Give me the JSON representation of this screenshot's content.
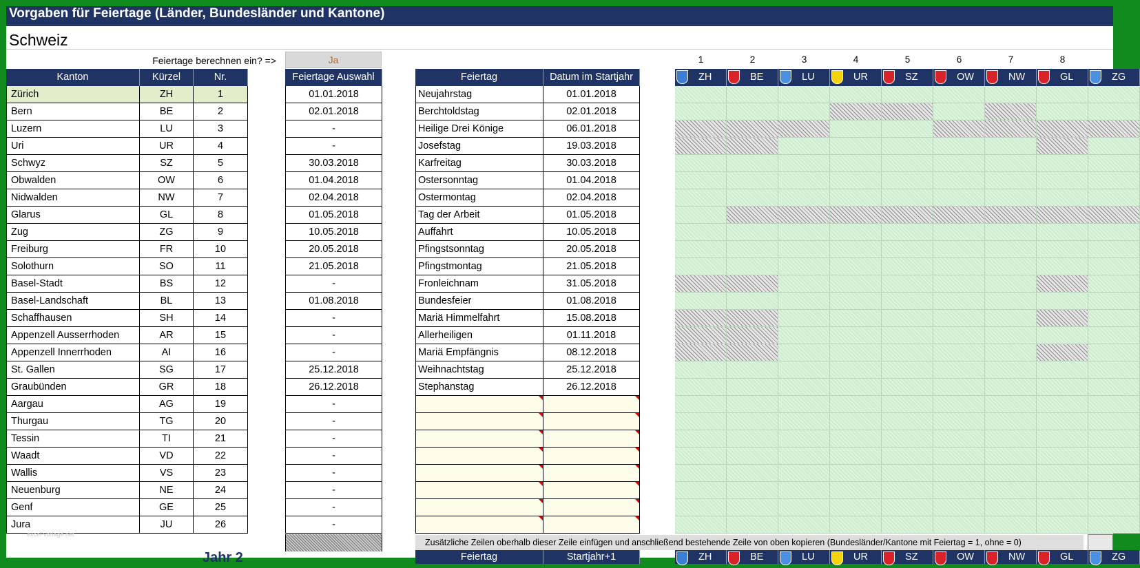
{
  "title": "Vorgaben für Feiertage  (Länder, Bundesländer und Kantone)",
  "country": "Schweiz",
  "calc_question": "Feiertage berechnen ein? =>",
  "calc_answer": "Ja",
  "kanton_table": {
    "headers": [
      "Kanton",
      "Kürzel",
      "Nr."
    ],
    "rows": [
      [
        "Zürich",
        "ZH",
        "1"
      ],
      [
        "Bern",
        "BE",
        "2"
      ],
      [
        "Luzern",
        "LU",
        "3"
      ],
      [
        "Uri",
        "UR",
        "4"
      ],
      [
        "Schwyz",
        "SZ",
        "5"
      ],
      [
        "Obwalden",
        "OW",
        "6"
      ],
      [
        "Nidwalden",
        "NW",
        "7"
      ],
      [
        "Glarus",
        "GL",
        "8"
      ],
      [
        "Zug",
        "ZG",
        "9"
      ],
      [
        "Freiburg",
        "FR",
        "10"
      ],
      [
        "Solothurn",
        "SO",
        "11"
      ],
      [
        "Basel-Stadt",
        "BS",
        "12"
      ],
      [
        "Basel-Landschaft",
        "BL",
        "13"
      ],
      [
        "Schaffhausen",
        "SH",
        "14"
      ],
      [
        "Appenzell Ausserrhoden",
        "AR",
        "15"
      ],
      [
        "Appenzell Innerrhoden",
        "AI",
        "16"
      ],
      [
        "St. Gallen",
        "SG",
        "17"
      ],
      [
        "Graubünden",
        "GR",
        "18"
      ],
      [
        "Aargau",
        "AG",
        "19"
      ],
      [
        "Thurgau",
        "TG",
        "20"
      ],
      [
        "Tessin",
        "TI",
        "21"
      ],
      [
        "Waadt",
        "VD",
        "22"
      ],
      [
        "Wallis",
        "VS",
        "23"
      ],
      [
        "Neuenburg",
        "NE",
        "24"
      ],
      [
        "Genf",
        "GE",
        "25"
      ],
      [
        "Jura",
        "JU",
        "26"
      ]
    ]
  },
  "auswahl": {
    "header": "Feiertage Auswahl",
    "values": [
      "01.01.2018",
      "02.01.2018",
      "-",
      "-",
      "30.03.2018",
      "01.04.2018",
      "02.04.2018",
      "01.05.2018",
      "10.05.2018",
      "20.05.2018",
      "21.05.2018",
      "-",
      "01.08.2018",
      "-",
      "-",
      "-",
      "25.12.2018",
      "26.12.2018",
      "-",
      "-",
      "-",
      "-",
      "-",
      "-",
      "-",
      "-"
    ]
  },
  "feiertage": {
    "headers": [
      "Feiertag",
      "Datum im Startjahr"
    ],
    "rows": [
      [
        "Neujahrstag",
        "01.01.2018"
      ],
      [
        "Berchtoldstag",
        "02.01.2018"
      ],
      [
        "Heilige Drei Könige",
        "06.01.2018"
      ],
      [
        "Josefstag",
        "19.03.2018"
      ],
      [
        "Karfreitag",
        "30.03.2018"
      ],
      [
        "Ostersonntag",
        "01.04.2018"
      ],
      [
        "Ostermontag",
        "02.04.2018"
      ],
      [
        "Tag der Arbeit",
        "01.05.2018"
      ],
      [
        "Auffahrt",
        "10.05.2018"
      ],
      [
        "Pfingstsonntag",
        "20.05.2018"
      ],
      [
        "Pfingstmontag",
        "21.05.2018"
      ],
      [
        "Fronleichnam",
        "31.05.2018"
      ],
      [
        "Bundesfeier",
        "01.08.2018"
      ],
      [
        "Mariä Himmelfahrt",
        "15.08.2018"
      ],
      [
        "Allerheiligen",
        "01.11.2018"
      ],
      [
        "Mariä Empfängnis",
        "08.12.2018"
      ],
      [
        "Weihnachtstag",
        "25.12.2018"
      ],
      [
        "Stephanstag",
        "26.12.2018"
      ]
    ],
    "empty_rows": 8
  },
  "note": "Zusätzliche Zeilen oberhalb dieser Zeile einfügen und anschließend bestehende Zeile von oben kopieren (Bundesländer/Kantone mit Feiertag = 1, ohne = 0)",
  "grid": {
    "col_numbers": [
      "1",
      "2",
      "3",
      "4",
      "5",
      "6",
      "7",
      "8"
    ],
    "cantons": [
      {
        "code": "ZH",
        "flag_icon": "zurich-flag-icon",
        "color": "#3a7fd5"
      },
      {
        "code": "BE",
        "flag_icon": "bern-flag-icon",
        "color": "#d8232a"
      },
      {
        "code": "LU",
        "flag_icon": "luzern-flag-icon",
        "color": "#4a8fe0"
      },
      {
        "code": "UR",
        "flag_icon": "uri-flag-icon",
        "color": "#f5d20a"
      },
      {
        "code": "SZ",
        "flag_icon": "schwyz-flag-icon",
        "color": "#d8232a"
      },
      {
        "code": "OW",
        "flag_icon": "obwalden-flag-icon",
        "color": "#d8232a"
      },
      {
        "code": "NW",
        "flag_icon": "nidwalden-flag-icon",
        "color": "#d8232a"
      },
      {
        "code": "GL",
        "flag_icon": "glarus-flag-icon",
        "color": "#d8232a"
      },
      {
        "code": "ZG",
        "flag_icon": "zug-flag-icon",
        "color": "#4a8fe0"
      }
    ],
    "marks": [
      [
        1,
        1,
        1,
        1,
        1,
        1,
        1,
        1,
        1
      ],
      [
        1,
        1,
        1,
        0,
        0,
        1,
        0,
        1,
        1
      ],
      [
        0,
        0,
        0,
        1,
        1,
        0,
        0,
        0,
        0
      ],
      [
        0,
        0,
        1,
        1,
        1,
        1,
        1,
        0,
        1
      ],
      [
        1,
        1,
        1,
        1,
        1,
        1,
        1,
        1,
        1
      ],
      [
        1,
        1,
        1,
        1,
        1,
        1,
        1,
        1,
        1
      ],
      [
        1,
        1,
        1,
        1,
        1,
        1,
        1,
        1,
        1
      ],
      [
        1,
        0,
        0,
        0,
        0,
        0,
        0,
        0,
        0
      ],
      [
        1,
        1,
        1,
        1,
        1,
        1,
        1,
        1,
        1
      ],
      [
        1,
        1,
        1,
        1,
        1,
        1,
        1,
        1,
        1
      ],
      [
        1,
        1,
        1,
        1,
        1,
        1,
        1,
        1,
        1
      ],
      [
        0,
        0,
        1,
        1,
        1,
        1,
        1,
        0,
        1
      ],
      [
        1,
        1,
        1,
        1,
        1,
        1,
        1,
        1,
        1
      ],
      [
        0,
        0,
        1,
        1,
        1,
        1,
        1,
        0,
        1
      ],
      [
        0,
        0,
        1,
        1,
        1,
        1,
        1,
        1,
        1
      ],
      [
        0,
        0,
        1,
        1,
        1,
        1,
        1,
        0,
        1
      ],
      [
        1,
        1,
        1,
        1,
        1,
        1,
        1,
        1,
        1
      ],
      [
        1,
        1,
        1,
        1,
        1,
        1,
        1,
        1,
        1
      ]
    ]
  },
  "bottom": {
    "jahr_label": "Jahr 2",
    "watermark": "excel-vorlage.net",
    "feiertag_header": "Feiertag",
    "datum_header": "Startjahr+1"
  }
}
